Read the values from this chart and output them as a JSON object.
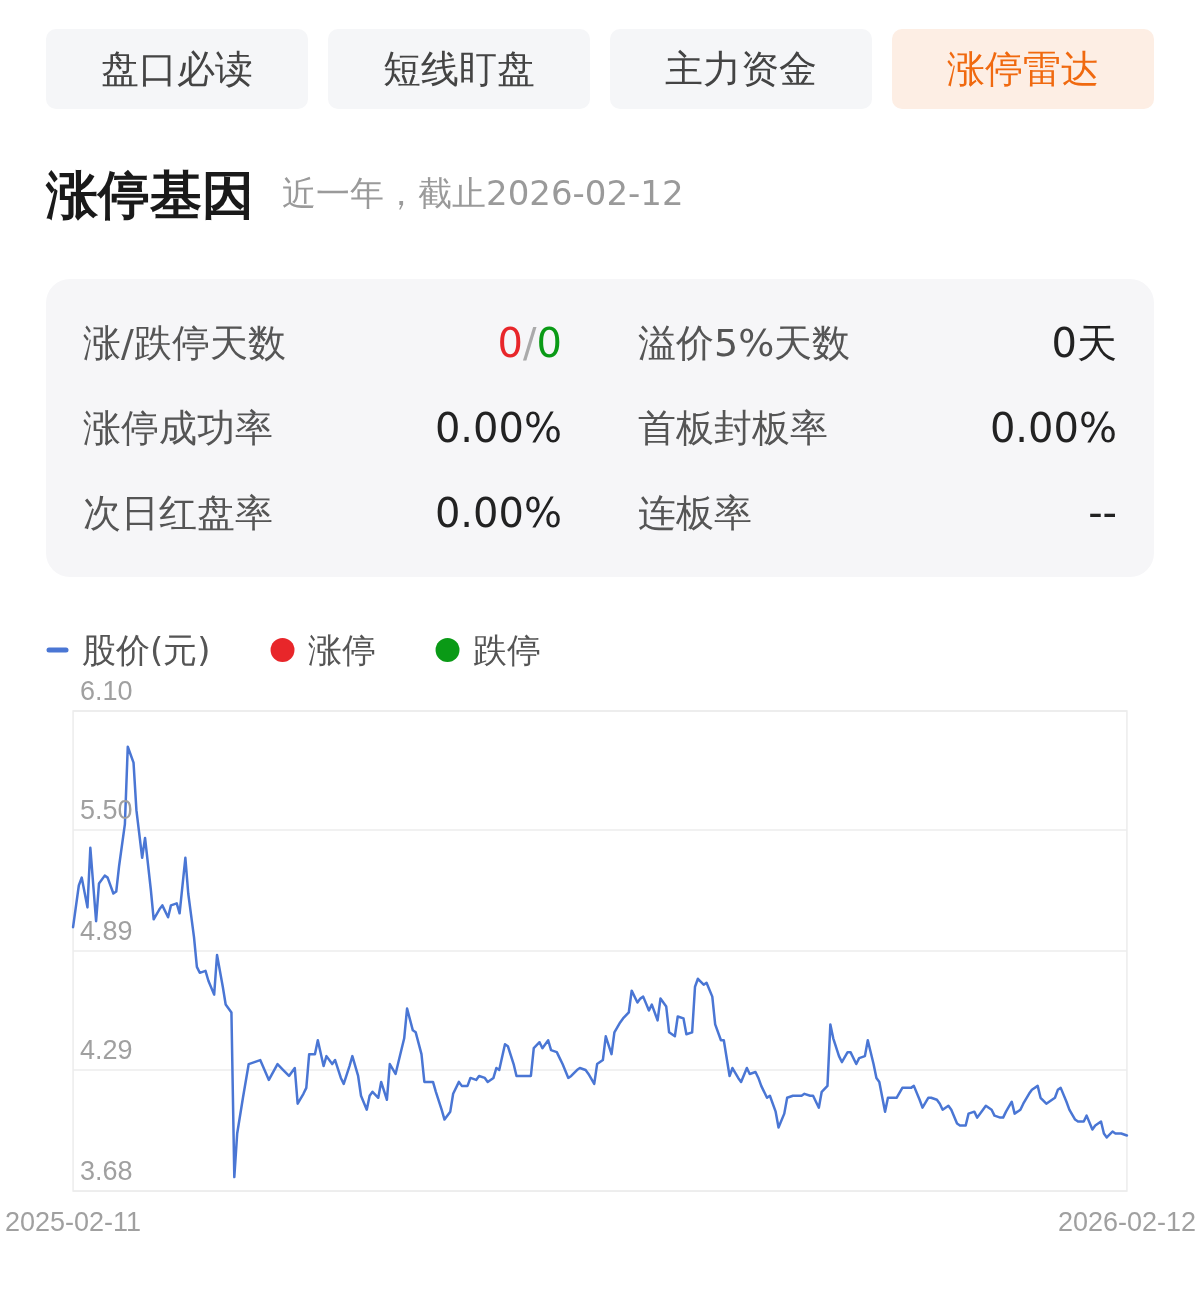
{
  "chart_data": [
    {
      "type": "other",
      "annotations": [
        "盘口必读",
        "短线盯盘",
        "主力资金",
        "涨停雷达"
      ],
      "colors": [
        "#f5f6f8",
        "#f5f6f8",
        "#f5f6f8",
        "#fdeee4"
      ]
    },
    {
      "type": "other",
      "title": "涨停基因",
      "subtitle": "近一年，截止2026-02-12",
      "annotations": [
        "涨/跌停天数",
        "0/0",
        "溢价5%天数",
        "0天",
        "涨停成功率",
        "0.00%",
        "首板封板率",
        "0.00%",
        "次日红盘率",
        "0.00%",
        "连板率",
        "--"
      ]
    },
    {
      "type": "line",
      "x": [
        "2025-02-11",
        "2025-02-13",
        "2025-02-14",
        "2025-02-16",
        "2025-02-17",
        "2025-02-19",
        "2025-02-20",
        "2025-02-22",
        "2025-02-23",
        "2025-02-25",
        "2025-02-26",
        "2025-02-27",
        "2025-03-01",
        "2025-03-02",
        "2025-03-04",
        "2025-03-05",
        "2025-03-07",
        "2025-03-08",
        "2025-03-10",
        "2025-03-11",
        "2025-03-13",
        "2025-03-14",
        "2025-03-16",
        "2025-03-17",
        "2025-03-19",
        "2025-03-20",
        "2025-03-22",
        "2025-03-23",
        "2025-03-25",
        "2025-03-26",
        "2025-03-27",
        "2025-03-29",
        "2025-03-30",
        "2025-04-01",
        "2025-04-02",
        "2025-04-04",
        "2025-04-05",
        "2025-04-07",
        "2025-04-08",
        "2025-04-09",
        "2025-04-11",
        "2025-04-13",
        "2025-04-15",
        "2025-04-17",
        "2025-04-20",
        "2025-04-23",
        "2025-04-25",
        "2025-04-27",
        "2025-04-29",
        "2025-04-30",
        "2025-05-02",
        "2025-05-03",
        "2025-05-04",
        "2025-05-06",
        "2025-05-07",
        "2025-05-09",
        "2025-05-10",
        "2025-05-12",
        "2025-05-13",
        "2025-05-15",
        "2025-05-16",
        "2025-05-18",
        "2025-05-19",
        "2025-05-21",
        "2025-05-22",
        "2025-05-24",
        "2025-05-25",
        "2025-05-26",
        "2025-05-28",
        "2025-05-29",
        "2025-05-31",
        "2025-06-01",
        "2025-06-03",
        "2025-06-04",
        "2025-06-06",
        "2025-06-07",
        "2025-06-09",
        "2025-06-10",
        "2025-06-12",
        "2025-06-13",
        "2025-06-15",
        "2025-06-16",
        "2025-06-17",
        "2025-06-19",
        "2025-06-20",
        "2025-06-22",
        "2025-06-23",
        "2025-06-25",
        "2025-06-26",
        "2025-06-28",
        "2025-06-29",
        "2025-07-01",
        "2025-07-02",
        "2025-07-04",
        "2025-07-05",
        "2025-07-07",
        "2025-07-08",
        "2025-07-09",
        "2025-07-11",
        "2025-07-12",
        "2025-07-14",
        "2025-07-15",
        "2025-07-17",
        "2025-07-18",
        "2025-07-20",
        "2025-07-21",
        "2025-07-23",
        "2025-07-24",
        "2025-07-26",
        "2025-07-27",
        "2025-07-29",
        "2025-07-30",
        "2025-07-31",
        "2025-08-02",
        "2025-08-03",
        "2025-08-05",
        "2025-08-06",
        "2025-08-08",
        "2025-08-09",
        "2025-08-11",
        "2025-08-12",
        "2025-08-14",
        "2025-08-15",
        "2025-08-17",
        "2025-08-18",
        "2025-08-20",
        "2025-08-21",
        "2025-08-23",
        "2025-08-24",
        "2025-08-26",
        "2025-08-27",
        "2025-08-28",
        "2025-08-30",
        "2025-08-31",
        "2025-09-02",
        "2025-09-03",
        "2025-09-05",
        "2025-09-06",
        "2025-09-08",
        "2025-09-09",
        "2025-09-11",
        "2025-09-12",
        "2025-09-14",
        "2025-09-15",
        "2025-09-16",
        "2025-09-18",
        "2025-09-19",
        "2025-09-21",
        "2025-09-22",
        "2025-09-24",
        "2025-09-25",
        "2025-09-27",
        "2025-09-28",
        "2025-09-30",
        "2025-10-01",
        "2025-10-03",
        "2025-10-04",
        "2025-10-06",
        "2025-10-07",
        "2025-10-08",
        "2025-10-10",
        "2025-10-11",
        "2025-10-13",
        "2025-10-14",
        "2025-10-16",
        "2025-10-17",
        "2025-10-19",
        "2025-10-20",
        "2025-10-22",
        "2025-10-23",
        "2025-10-25",
        "2025-10-26",
        "2025-10-28",
        "2025-10-29",
        "2025-10-31",
        "2025-11-01",
        "2025-11-02",
        "2025-11-04",
        "2025-11-05",
        "2025-11-07",
        "2025-11-08",
        "2025-11-10",
        "2025-11-11",
        "2025-11-13",
        "2025-11-14",
        "2025-11-16",
        "2025-11-17",
        "2025-11-18",
        "2025-11-20",
        "2025-11-21",
        "2025-11-23",
        "2025-11-24",
        "2025-11-26",
        "2025-11-27",
        "2025-11-29",
        "2025-11-30",
        "2025-12-02",
        "2025-12-03",
        "2025-12-05",
        "2025-12-06",
        "2025-12-08",
        "2025-12-09",
        "2025-12-10",
        "2025-12-12",
        "2025-12-13",
        "2025-12-15",
        "2025-12-16",
        "2025-12-18",
        "2025-12-19",
        "2025-12-21",
        "2025-12-22",
        "2025-12-24",
        "2025-12-25",
        "2025-12-27",
        "2025-12-28",
        "2025-12-30",
        "2025-12-31",
        "2026-01-01",
        "2026-01-03",
        "2026-01-04",
        "2026-01-06",
        "2026-01-07",
        "2026-01-09",
        "2026-01-10",
        "2026-01-12",
        "2026-01-13",
        "2026-01-15",
        "2026-01-16",
        "2026-01-18",
        "2026-01-19",
        "2026-01-20",
        "2026-01-22",
        "2026-01-23",
        "2026-01-25",
        "2026-01-26",
        "2026-01-28",
        "2026-01-29",
        "2026-01-31",
        "2026-02-01",
        "2026-02-03",
        "2026-02-04",
        "2026-02-05",
        "2026-02-07",
        "2026-02-08",
        "2026-02-10",
        "2026-02-12"
      ],
      "series": [
        {
          "name": "股价(元)",
          "color": "#4a76d4",
          "values": [
            5.01,
            5.22,
            5.26,
            5.11,
            5.41,
            5.04,
            5.23,
            5.27,
            5.26,
            5.18,
            5.19,
            5.32,
            5.53,
            5.92,
            5.84,
            5.6,
            5.36,
            5.46,
            5.2,
            5.05,
            5.1,
            5.12,
            5.06,
            5.12,
            5.13,
            5.08,
            5.36,
            5.18,
            4.96,
            4.81,
            4.78,
            4.79,
            4.74,
            4.67,
            4.87,
            4.71,
            4.62,
            4.58,
            3.75,
            3.97,
            4.15,
            4.32,
            4.33,
            4.34,
            4.24,
            4.32,
            4.29,
            4.26,
            4.3,
            4.12,
            4.17,
            4.2,
            4.37,
            4.37,
            4.44,
            4.31,
            4.36,
            4.32,
            4.34,
            4.25,
            4.22,
            4.31,
            4.36,
            4.26,
            4.16,
            4.09,
            4.16,
            4.18,
            4.15,
            4.23,
            4.14,
            4.32,
            4.27,
            4.33,
            4.45,
            4.6,
            4.49,
            4.48,
            4.37,
            4.23,
            4.23,
            4.23,
            4.18,
            4.09,
            4.04,
            4.08,
            4.17,
            4.23,
            4.21,
            4.21,
            4.25,
            4.24,
            4.26,
            4.25,
            4.23,
            4.25,
            4.3,
            4.29,
            4.42,
            4.41,
            4.32,
            4.26,
            4.26,
            4.26,
            4.26,
            4.4,
            4.43,
            4.4,
            4.44,
            4.39,
            4.38,
            4.35,
            4.32,
            4.25,
            4.26,
            4.29,
            4.3,
            4.29,
            4.27,
            4.22,
            4.32,
            4.34,
            4.46,
            4.37,
            4.48,
            4.53,
            4.55,
            4.58,
            4.69,
            4.63,
            4.65,
            4.66,
            4.59,
            4.62,
            4.54,
            4.65,
            4.61,
            4.48,
            4.46,
            4.56,
            4.55,
            4.47,
            4.48,
            4.71,
            4.75,
            4.72,
            4.73,
            4.66,
            4.52,
            4.44,
            4.44,
            4.26,
            4.3,
            4.25,
            4.23,
            4.3,
            4.27,
            4.28,
            4.25,
            4.21,
            4.15,
            4.16,
            4.08,
            4.0,
            4.07,
            4.15,
            4.16,
            4.16,
            4.16,
            4.17,
            4.16,
            4.16,
            4.1,
            4.18,
            4.21,
            4.52,
            4.45,
            4.36,
            4.33,
            4.38,
            4.38,
            4.32,
            4.35,
            4.36,
            4.44,
            4.32,
            4.25,
            4.23,
            4.08,
            4.15,
            4.15,
            4.15,
            4.2,
            4.2,
            4.2,
            4.21,
            4.14,
            4.1,
            4.15,
            4.15,
            4.14,
            4.12,
            4.09,
            4.11,
            4.09,
            4.02,
            4.01,
            4.01,
            4.07,
            4.08,
            4.05,
            4.09,
            4.11,
            4.09,
            4.06,
            4.05,
            4.05,
            4.08,
            4.13,
            4.07,
            4.09,
            4.12,
            4.17,
            4.19,
            4.21,
            4.15,
            4.12,
            4.13,
            4.15,
            4.19,
            4.2,
            4.13,
            4.09,
            4.04,
            4.03,
            4.03,
            4.06,
            3.99,
            4.01,
            4.03,
            3.97,
            3.95,
            3.98,
            3.97,
            3.97,
            3.96
          ]
        },
        {
          "name": "涨停",
          "type": "scatter",
          "marker": "circle",
          "color": "#e8262a",
          "values": [
            null,
            null,
            null,
            null,
            null,
            null,
            null,
            null,
            null,
            null,
            null,
            null,
            null,
            null,
            null,
            null,
            null,
            null,
            null,
            null,
            null,
            null,
            null,
            null,
            null,
            null,
            null,
            null,
            null,
            null,
            null,
            null,
            null,
            null,
            null,
            null,
            null,
            null,
            null,
            null,
            null,
            null,
            null,
            null,
            null,
            null,
            null,
            null,
            null,
            null,
            null,
            null,
            null,
            null,
            null,
            null,
            null,
            null,
            null,
            null,
            null,
            null,
            null,
            null,
            null,
            null,
            null,
            null,
            null,
            null,
            null,
            null,
            null,
            null,
            null,
            null,
            null,
            null,
            null,
            null,
            null,
            null,
            null,
            null,
            null,
            null,
            null,
            null,
            null,
            null,
            null,
            null,
            null,
            null,
            null,
            null,
            null,
            null,
            null,
            null,
            null,
            null,
            null,
            null,
            null,
            null,
            null,
            null,
            null,
            null,
            null,
            null,
            null,
            null,
            null,
            null,
            null,
            null,
            null,
            null,
            null,
            null,
            null,
            null,
            null,
            null,
            null,
            null,
            null,
            null,
            null,
            null,
            null,
            null,
            null,
            null,
            null,
            null,
            null,
            null,
            null,
            null,
            null,
            null,
            null,
            null,
            null,
            null,
            null,
            null,
            null,
            null,
            null,
            null,
            null,
            null,
            null,
            null,
            null,
            null,
            null,
            null,
            null,
            null,
            null,
            null,
            null,
            null,
            null,
            null,
            null,
            null,
            null,
            null,
            null,
            null,
            null,
            null,
            null,
            null,
            null,
            null,
            null,
            null,
            null,
            null,
            null,
            null,
            null,
            null,
            null,
            null,
            null,
            null,
            null,
            null,
            null,
            null,
            null,
            null,
            null,
            null,
            null,
            null,
            null,
            null,
            null,
            null,
            null,
            null,
            null,
            null,
            null,
            null,
            null,
            null,
            null,
            null,
            null,
            null,
            null,
            null,
            null,
            null,
            null,
            null,
            null,
            null,
            null,
            null,
            null,
            null,
            null,
            null,
            null,
            null,
            null,
            null,
            null,
            null,
            null,
            null,
            null,
            null,
            null,
            null
          ]
        },
        {
          "name": "跌停",
          "type": "scatter",
          "marker": "circle",
          "color": "#0a9a16",
          "values": [
            null,
            null,
            null,
            null,
            null,
            null,
            null,
            null,
            null,
            null,
            null,
            null,
            null,
            null,
            null,
            null,
            null,
            null,
            null,
            null,
            null,
            null,
            null,
            null,
            null,
            null,
            null,
            null,
            null,
            null,
            null,
            null,
            null,
            null,
            null,
            null,
            null,
            null,
            null,
            null,
            null,
            null,
            null,
            null,
            null,
            null,
            null,
            null,
            null,
            null,
            null,
            null,
            null,
            null,
            null,
            null,
            null,
            null,
            null,
            null,
            null,
            null,
            null,
            null,
            null,
            null,
            null,
            null,
            null,
            null,
            null,
            null,
            null,
            null,
            null,
            null,
            null,
            null,
            null,
            null,
            null,
            null,
            null,
            null,
            null,
            null,
            null,
            null,
            null,
            null,
            null,
            null,
            null,
            null,
            null,
            null,
            null,
            null,
            null,
            null,
            null,
            null,
            null,
            null,
            null,
            null,
            null,
            null,
            null,
            null,
            null,
            null,
            null,
            null,
            null,
            null,
            null,
            null,
            null,
            null,
            null,
            null,
            null,
            null,
            null,
            null,
            null,
            null,
            null,
            null,
            null,
            null,
            null,
            null,
            null,
            null,
            null,
            null,
            null,
            null,
            null,
            null,
            null,
            null,
            null,
            null,
            null,
            null,
            null,
            null,
            null,
            null,
            null,
            null,
            null,
            null,
            null,
            null,
            null,
            null,
            null,
            null,
            null,
            null,
            null,
            null,
            null,
            null,
            null,
            null,
            null,
            null,
            null,
            null,
            null,
            null,
            null,
            null,
            null,
            null,
            null,
            null,
            null,
            null,
            null,
            null,
            null,
            null,
            null,
            null,
            null,
            null,
            null,
            null,
            null,
            null,
            null,
            null,
            null,
            null,
            null,
            null,
            null,
            null,
            null,
            null,
            null,
            null,
            null,
            null,
            null,
            null,
            null,
            null,
            null,
            null,
            null,
            null,
            null,
            null,
            null,
            null,
            null,
            null,
            null,
            null,
            null,
            null,
            null,
            null,
            null,
            null,
            null,
            null,
            null,
            null,
            null,
            null,
            null,
            null,
            null,
            null,
            null,
            null,
            null,
            null
          ]
        }
      ],
      "xlim": [
        "2025-02-11",
        "2026-02-12"
      ],
      "xticks": [
        "2025-02-11",
        "2026-02-12"
      ],
      "ylim": [
        3.68,
        6.1
      ],
      "yticks": [
        3.68,
        4.29,
        4.89,
        {
          "value": 5.5,
          "label": "5.50"
        },
        {
          "value": 6.1,
          "label": "6.10"
        }
      ],
      "grid": "y",
      "legend": "top left"
    }
  ]
}
